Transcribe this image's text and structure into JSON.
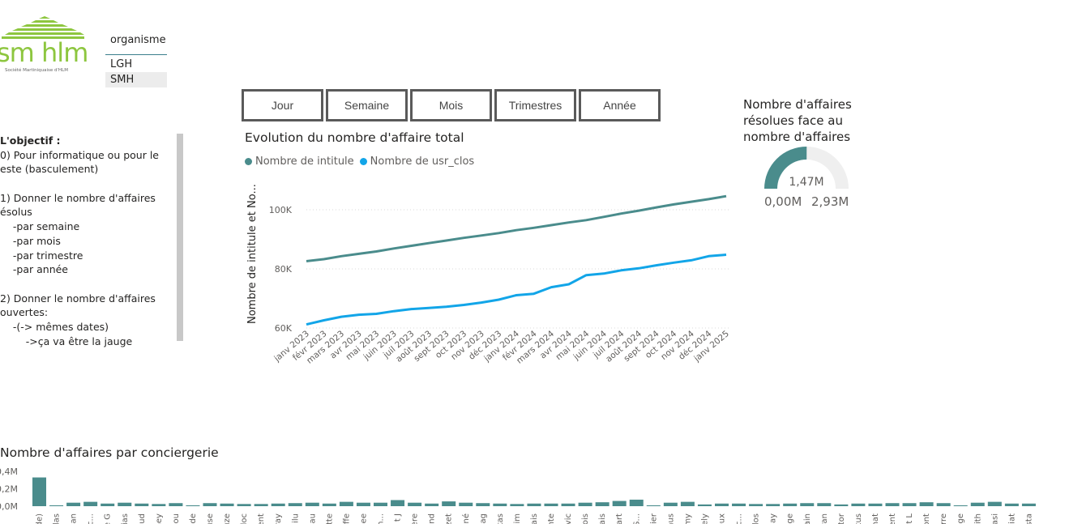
{
  "logo": {
    "text": "sm hlm",
    "subtitle": "Société Martiniquaise d'HLM",
    "colors": {
      "roof": "#8dc63f",
      "text": "#8dc63f"
    }
  },
  "slicer": {
    "title": "organisme",
    "items": [
      "LGH",
      "SMH"
    ],
    "selected": "SMH"
  },
  "objective": {
    "lines": [
      "L'objectif :",
      "0) Pour informatique ou pour le",
      "este (basculement)",
      "",
      "1) Donner le nombre d'affaires",
      "ésolus",
      "    -par semaine",
      "    -par mois",
      "    -par trimestre",
      "    -par année",
      "",
      "2) Donner le nombre d'affaires",
      "ouvertes:",
      "    -(-> mêmes dates)",
      "        ->ça va être la jauge"
    ]
  },
  "period_buttons": [
    "Jour",
    "Semaine",
    "Mois",
    "Trimestres",
    "Année"
  ],
  "line_chart": {
    "title": "Evolution du nombre d'affaire total",
    "legend": [
      {
        "name": "Nombre de intitule",
        "color": "#4a8c8c"
      },
      {
        "name": "Nombre de usr_clos",
        "color": "#12a5e8"
      }
    ],
    "ylabel": "Nombre de intitule et No...",
    "y_ticks": [
      "100K",
      "80K",
      "60K"
    ]
  },
  "chart_data": [
    {
      "type": "line",
      "title": "Evolution du nombre d'affaire total",
      "ylabel": "Nombre de intitule et No...",
      "xlabel": "",
      "x": [
        "janv 2023",
        "févr 2023",
        "mars 2023",
        "avr 2023",
        "mai 2023",
        "juin 2023",
        "juil 2023",
        "août 2023",
        "sept 2023",
        "oct 2023",
        "nov 2023",
        "déc 2023",
        "janv 2024",
        "févr 2024",
        "mars 2024",
        "avr 2024",
        "mai 2024",
        "juin 2024",
        "juil 2024",
        "août 2024",
        "sept 2024",
        "oct 2024",
        "nov 2024",
        "déc 2024",
        "janv 2025"
      ],
      "ylim": [
        60000,
        105000
      ],
      "y_ticks": [
        60000,
        80000,
        100000
      ],
      "grid": true,
      "legend_position": "top-left",
      "series": [
        {
          "name": "Nombre de intitule",
          "color": "#4a8c8c",
          "values": [
            82600,
            83300,
            84300,
            85100,
            85900,
            86900,
            87800,
            88700,
            89600,
            90500,
            91300,
            92100,
            93100,
            93900,
            94800,
            95700,
            96500,
            97600,
            98700,
            99700,
            100800,
            101800,
            102700,
            103600,
            104600
          ]
        },
        {
          "name": "Nombre de usr_clos",
          "color": "#12a5e8",
          "values": [
            61200,
            62600,
            63800,
            64500,
            64800,
            65700,
            66400,
            66800,
            67200,
            67800,
            68600,
            69600,
            71100,
            71600,
            73800,
            74800,
            77900,
            78400,
            79500,
            80200,
            81200,
            82100,
            82900,
            84300,
            84800
          ]
        }
      ]
    },
    {
      "type": "gauge",
      "title": "Nombre d'affaires résolues face au nombre d'affaires",
      "value": 1.47,
      "value_label": "1,47M",
      "min": 0,
      "max": 2.93,
      "min_label": "0,00M",
      "max_label": "2,93M",
      "unit": "M",
      "fill_color": "#4a8c8c",
      "track_color": "#efefef"
    },
    {
      "type": "bar",
      "title": "Nombre d'affaires par conciergerie",
      "y_ticks": [
        "0,4M",
        "0,2M",
        "0,0M"
      ],
      "ylim": [
        0,
        0.4
      ],
      "color": "#4a8c8c",
      "categories": [
        "de)",
        "las",
        "ian",
        "c...",
        "e G",
        "ias",
        "ud",
        "ney",
        "ou",
        "de",
        "use",
        "uze",
        "loc",
        "ent",
        "ray",
        "ilu",
        "eau",
        "tte",
        "ffe",
        "ee",
        "h...",
        "t J",
        "ère",
        "nd",
        "zet",
        "né",
        "ag",
        "tas",
        "im",
        "ais",
        "nte",
        "vic",
        "ois",
        "ais",
        "art",
        "S...",
        "rier",
        "nus",
        "my",
        "ely",
        "eux",
        "c...",
        "los",
        "lay",
        "ge",
        "ain",
        "ran",
        "tor",
        "tus",
        "nat",
        "ent",
        "t L",
        "ont",
        "rre",
        "nge",
        "ith",
        "asi",
        "iat",
        "sta"
      ],
      "values": [
        0.33,
        0.01,
        0.04,
        0.05,
        0.03,
        0.04,
        0.03,
        0.025,
        0.035,
        0.01,
        0.035,
        0.03,
        0.025,
        0.025,
        0.03,
        0.035,
        0.04,
        0.03,
        0.05,
        0.04,
        0.04,
        0.07,
        0.04,
        0.03,
        0.055,
        0.04,
        0.035,
        0.03,
        0.025,
        0.03,
        0.03,
        0.03,
        0.04,
        0.045,
        0.06,
        0.075,
        0.01,
        0.04,
        0.05,
        0.02,
        0.03,
        0.03,
        0.025,
        0.025,
        0.03,
        0.035,
        0.035,
        0.02,
        0.03,
        0.03,
        0.035,
        0.035,
        0.045,
        0.035,
        0.01,
        0.04,
        0.05,
        0.03,
        0.03
      ]
    }
  ]
}
